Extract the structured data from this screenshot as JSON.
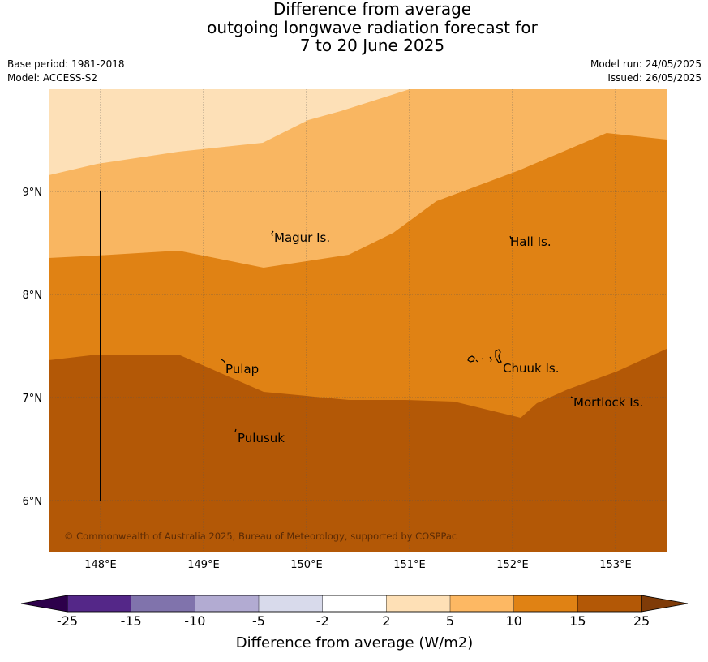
{
  "title": {
    "line1": "Difference from average",
    "line2": "outgoing longwave radiation forecast for",
    "line3": "7 to 20 June 2025"
  },
  "meta": {
    "base_period": "Base period: 1981-2018",
    "model": "Model: ACCESS-S2",
    "model_run": "Model run: 24/05/2025",
    "issued": "Issued: 26/05/2025"
  },
  "map": {
    "lon_ticks": [
      "148°E",
      "149°E",
      "150°E",
      "151°E",
      "152°E",
      "153°E"
    ],
    "lat_ticks": [
      "9°N",
      "8°N",
      "7°N",
      "6°N"
    ],
    "places": {
      "magur": "Magur Is.",
      "hall": "Hall Is.",
      "pulap": "Pulap",
      "chuuk": "Chuuk Is.",
      "mortlock": "Mortlock Is.",
      "pulusuk": "Pulusuk"
    },
    "copyright": "© Commonwealth of Australia 2025, Bureau of Meteorology, supported by COSPPac",
    "band_colors": {
      "2_to_5": "#fde0b7",
      "5_to_10": "#f9b661",
      "10_to_15": "#e08214",
      "15_to_25": "#b35806"
    }
  },
  "colorbar": {
    "label": "Difference from average (W/m2)",
    "ticks": [
      "-25",
      "-15",
      "-10",
      "-5",
      "-2",
      "2",
      "5",
      "10",
      "15",
      "25"
    ],
    "colors": [
      "#542788",
      "#8073ac",
      "#b2abd2",
      "#d8daeb",
      "#ffffff",
      "#fee0b6",
      "#fdb863",
      "#e08214",
      "#b35806"
    ],
    "extend_low_color": "#2d004b",
    "extend_high_color": "#7f3b08"
  }
}
